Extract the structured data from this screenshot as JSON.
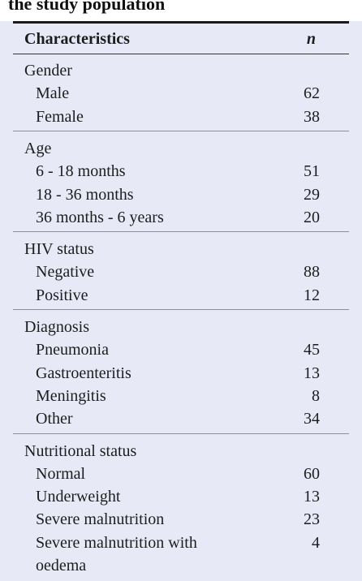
{
  "table": {
    "title": "the study population",
    "header": {
      "label": "Characteristics",
      "n": "n"
    },
    "groups": [
      {
        "name": "Gender",
        "rows": [
          {
            "label": "Male",
            "value": "62"
          },
          {
            "label": "Female",
            "value": "38"
          }
        ]
      },
      {
        "name": "Age",
        "rows": [
          {
            "label": "6 - 18 months",
            "value": "51"
          },
          {
            "label": "18 - 36 months",
            "value": "29"
          },
          {
            "label": "36 months - 6 years",
            "value": "20"
          }
        ]
      },
      {
        "name": "HIV status",
        "rows": [
          {
            "label": "Negative",
            "value": "88"
          },
          {
            "label": "Positive",
            "value": "12"
          }
        ]
      },
      {
        "name": "Diagnosis",
        "rows": [
          {
            "label": "Pneumonia",
            "value": "45"
          },
          {
            "label": "Gastroenteritis",
            "value": "13"
          },
          {
            "label": "Meningitis",
            "value": "8"
          },
          {
            "label": "Other",
            "value": "34"
          }
        ]
      },
      {
        "name": "Nutritional status",
        "rows": [
          {
            "label": "Normal",
            "value": "60"
          },
          {
            "label": "Underweight",
            "value": "13"
          },
          {
            "label": "Severe malnutrition",
            "value": "23"
          },
          {
            "label": "Severe malnutrition with",
            "value": "4"
          },
          {
            "label": "oedema",
            "value": ""
          }
        ]
      }
    ]
  }
}
